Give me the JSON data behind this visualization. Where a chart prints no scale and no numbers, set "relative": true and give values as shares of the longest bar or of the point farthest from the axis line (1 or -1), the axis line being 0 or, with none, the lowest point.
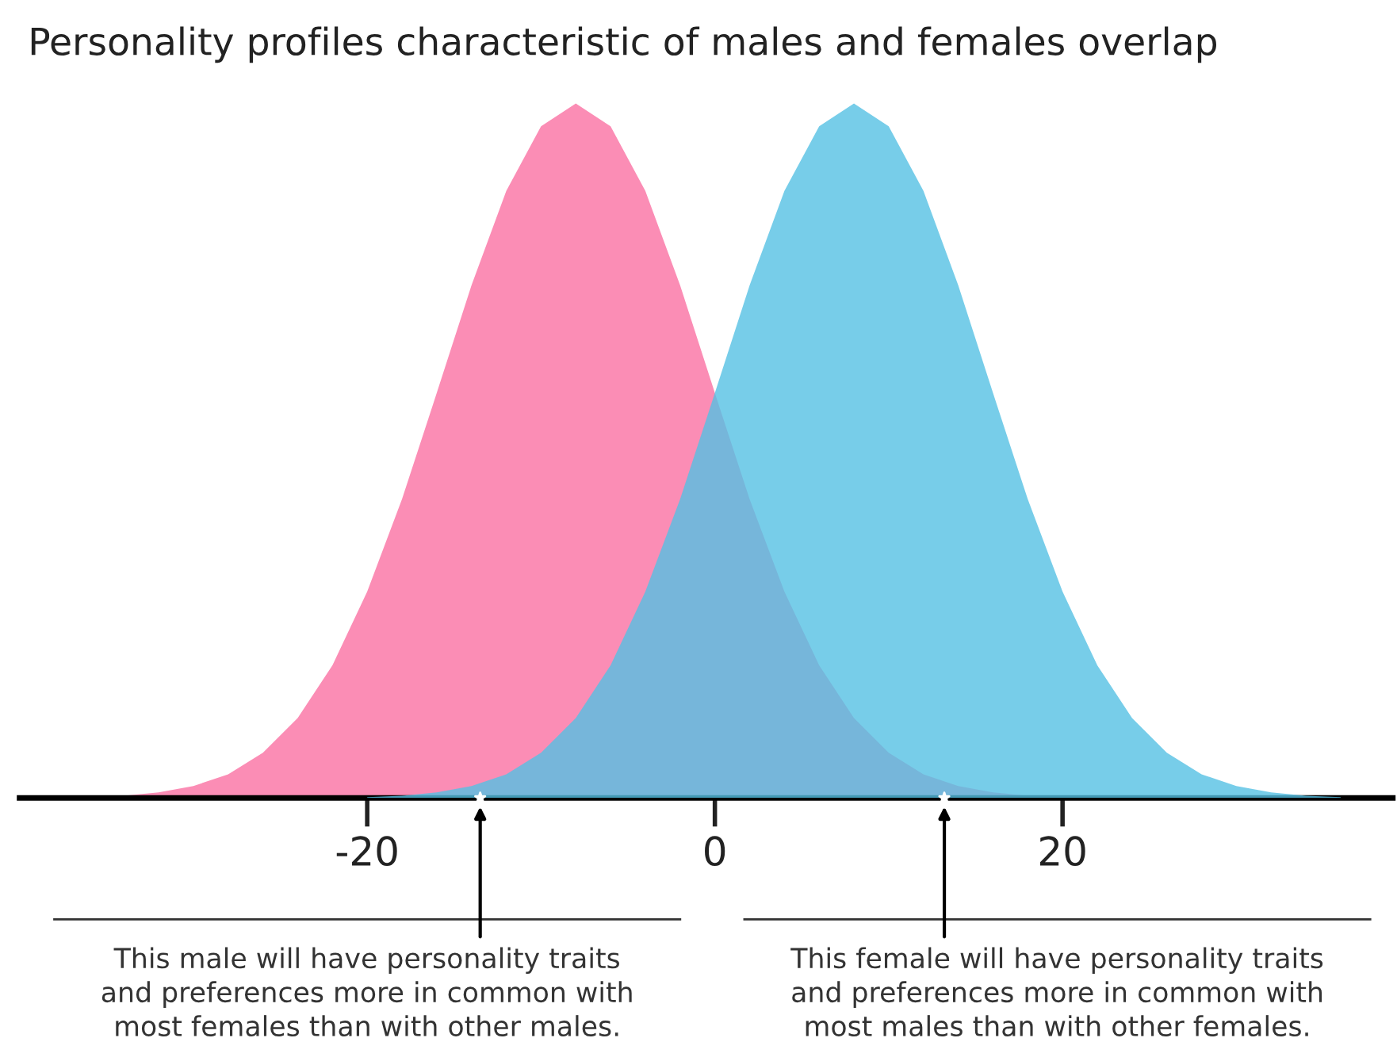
{
  "chart_data": {
    "type": "area",
    "title": "Personality profiles characteristic of males and females overlap",
    "relative": true,
    "xlim": [
      -40,
      39
    ],
    "xticks": [
      -20,
      0,
      20
    ],
    "grid": false,
    "legend": false,
    "series": [
      {
        "color": "#fb8db5",
        "x": [
          -36,
          -34,
          -32,
          -30,
          -28,
          -26,
          -24,
          -22,
          -20,
          -18,
          -16,
          -14,
          -12,
          -10,
          -8,
          -6,
          -4,
          -2,
          0,
          2,
          4,
          6,
          8,
          10,
          12,
          14,
          16,
          18,
          20
        ],
        "values": [
          0.001,
          0.003,
          0.008,
          0.017,
          0.034,
          0.065,
          0.115,
          0.191,
          0.297,
          0.43,
          0.583,
          0.738,
          0.874,
          0.967,
          1,
          0.967,
          0.874,
          0.738,
          0.583,
          0.43,
          0.297,
          0.191,
          0.115,
          0.065,
          0.034,
          0.017,
          0.008,
          0.003,
          0.001
        ]
      },
      {
        "type": "scatter",
        "marker": "star",
        "color": "#ffffff",
        "x": [
          -13.5,
          13.2
        ],
        "values": [
          0,
          0
        ]
      },
      {
        "color": "#55c0e4",
        "x": [
          -20,
          -18,
          -16,
          -14,
          -12,
          -10,
          -8,
          -6,
          -4,
          -2,
          0,
          2,
          4,
          6,
          8,
          10,
          12,
          14,
          16,
          18,
          20,
          22,
          24,
          26,
          28,
          30,
          32,
          34,
          36
        ],
        "values": [
          0.001,
          0.003,
          0.008,
          0.017,
          0.034,
          0.065,
          0.115,
          0.191,
          0.297,
          0.43,
          0.583,
          0.738,
          0.874,
          0.967,
          1,
          0.967,
          0.874,
          0.738,
          0.583,
          0.43,
          0.297,
          0.191,
          0.115,
          0.065,
          0.034,
          0.017,
          0.008,
          0.003,
          0.001
        ]
      }
    ],
    "annotations": [
      "This male will have personality traits\nand preferences more in common with\nmost females than with other males.",
      "This female will have personality traits\nand preferences more in common with\nmost males than with other females."
    ]
  }
}
